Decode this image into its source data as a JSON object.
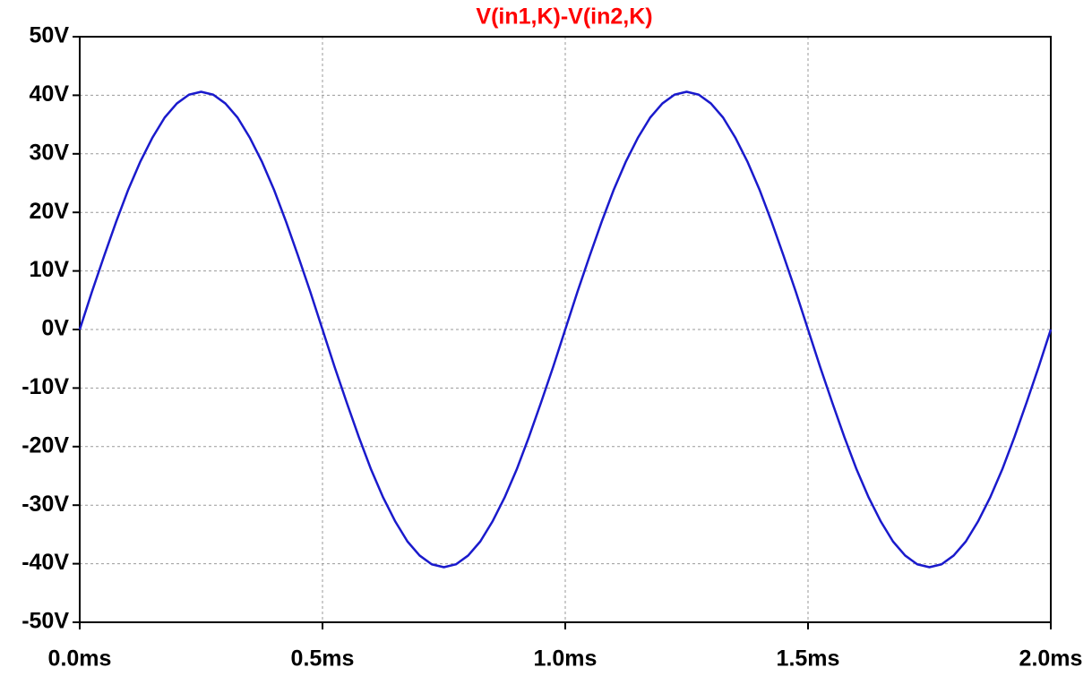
{
  "chart_data": {
    "type": "line",
    "title": "V(in1,K)-V(in2,K)",
    "x": [
      0,
      0.025,
      0.05,
      0.075,
      0.1,
      0.125,
      0.15,
      0.175,
      0.2,
      0.225,
      0.25,
      0.275,
      0.3,
      0.325,
      0.35,
      0.375,
      0.4,
      0.425,
      0.45,
      0.475,
      0.5,
      0.525,
      0.55,
      0.575,
      0.6,
      0.625,
      0.65,
      0.675,
      0.7,
      0.725,
      0.75,
      0.775,
      0.8,
      0.825,
      0.85,
      0.875,
      0.9,
      0.925,
      0.95,
      0.975,
      1.0,
      1.025,
      1.05,
      1.075,
      1.1,
      1.125,
      1.15,
      1.175,
      1.2,
      1.225,
      1.25,
      1.275,
      1.3,
      1.325,
      1.35,
      1.375,
      1.4,
      1.425,
      1.45,
      1.475,
      1.5,
      1.525,
      1.55,
      1.575,
      1.6,
      1.625,
      1.65,
      1.675,
      1.7,
      1.725,
      1.75,
      1.775,
      1.8,
      1.825,
      1.85,
      1.875,
      1.9,
      1.925,
      1.95,
      1.975,
      2.0
    ],
    "values": [
      0,
      6.4,
      12.5,
      18.4,
      23.9,
      28.7,
      32.8,
      36.2,
      38.6,
      40.1,
      40.6,
      40.1,
      38.6,
      36.2,
      32.8,
      28.7,
      23.9,
      18.4,
      12.5,
      6.4,
      0,
      -6.4,
      -12.5,
      -18.4,
      -23.9,
      -28.7,
      -32.8,
      -36.2,
      -38.6,
      -40.1,
      -40.6,
      -40.1,
      -38.6,
      -36.2,
      -32.8,
      -28.7,
      -23.9,
      -18.4,
      -12.5,
      -6.4,
      0,
      6.4,
      12.5,
      18.4,
      23.9,
      28.7,
      32.8,
      36.2,
      38.6,
      40.1,
      40.6,
      40.1,
      38.6,
      36.2,
      32.8,
      28.7,
      23.9,
      18.4,
      12.5,
      6.4,
      0,
      -6.4,
      -12.5,
      -18.4,
      -23.9,
      -28.7,
      -32.8,
      -36.2,
      -38.6,
      -40.1,
      -40.6,
      -40.1,
      -38.6,
      -36.2,
      -32.8,
      -28.7,
      -23.9,
      -18.4,
      -12.5,
      -6.4,
      0
    ],
    "color": "#1a1acc",
    "xlim": [
      0,
      2.0
    ],
    "xticks": [
      {
        "value": 0,
        "label": "0.0ms"
      },
      {
        "value": 0.5,
        "label": "0.5ms"
      },
      {
        "value": 1.0,
        "label": "1.0ms"
      },
      {
        "value": 1.5,
        "label": "1.5ms"
      },
      {
        "value": 2.0,
        "label": "2.0ms"
      }
    ],
    "ylim": [
      -50,
      50
    ],
    "yticks": [
      {
        "value": -50,
        "label": "-50V"
      },
      {
        "value": -40,
        "label": "-40V"
      },
      {
        "value": -30,
        "label": "-30V"
      },
      {
        "value": -20,
        "label": "-20V"
      },
      {
        "value": -10,
        "label": "-10V"
      },
      {
        "value": 0,
        "label": "0V"
      },
      {
        "value": 10,
        "label": "10V"
      },
      {
        "value": 20,
        "label": "20V"
      },
      {
        "value": 30,
        "label": "30V"
      },
      {
        "value": 40,
        "label": "40V"
      },
      {
        "value": 50,
        "label": "50V"
      }
    ],
    "grid": true
  }
}
